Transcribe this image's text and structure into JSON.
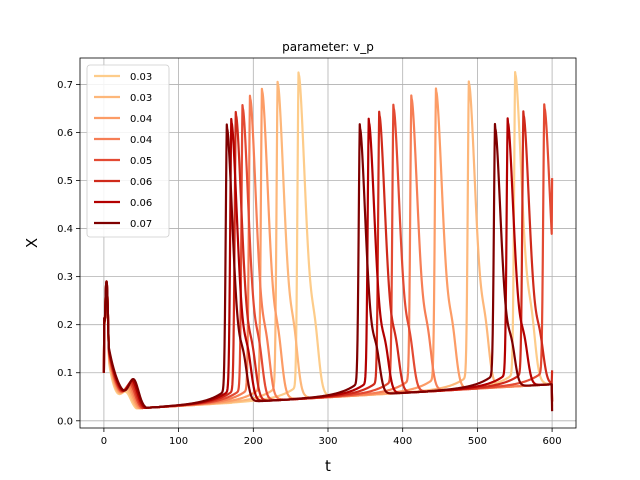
{
  "chart_data": {
    "type": "line",
    "title": "parameter: v_p",
    "xlabel": "t",
    "ylabel": "X",
    "xlim": [
      -32,
      632
    ],
    "ylim": [
      -0.015,
      0.755
    ],
    "xticks": [
      0,
      100,
      200,
      300,
      400,
      500,
      600
    ],
    "yticks": [
      0.0,
      0.1,
      0.2,
      0.3,
      0.4,
      0.5,
      0.6,
      0.7
    ],
    "xtick_labels": [
      "0",
      "100",
      "200",
      "300",
      "400",
      "500",
      "600"
    ],
    "ytick_labels": [
      "0.0",
      "0.1",
      "0.2",
      "0.3",
      "0.4",
      "0.5",
      "0.6",
      "0.7"
    ],
    "grid": true,
    "legend_position": "upper-left",
    "series": [
      {
        "name": "0.03",
        "color": "#fdcc8a",
        "peaks": [
          {
            "t": 261,
            "x": 0.72
          },
          {
            "t": 551,
            "x": 0.72
          }
        ],
        "end": 0.03
      },
      {
        "name": "0.03",
        "color": "#fdb77a",
        "peaks": [
          {
            "t": 233,
            "x": 0.7
          },
          {
            "t": 489,
            "x": 0.7
          }
        ],
        "end": 0.04
      },
      {
        "name": "0.04",
        "color": "#fc9c66",
        "peaks": [
          {
            "t": 212,
            "x": 0.685
          },
          {
            "t": 445,
            "x": 0.685
          }
        ],
        "end": 0.045
      },
      {
        "name": "0.04",
        "color": "#f67e55",
        "peaks": [
          {
            "t": 196,
            "x": 0.67
          },
          {
            "t": 412,
            "x": 0.67
          }
        ],
        "end": 0.04
      },
      {
        "name": "0.05",
        "color": "#e34a33",
        "peaks": [
          {
            "t": 186,
            "x": 0.65
          },
          {
            "t": 388,
            "x": 0.65
          },
          {
            "t": 590,
            "x": 0.65
          }
        ],
        "end": 0.505
      },
      {
        "name": "0.06",
        "color": "#cf2a1b",
        "peaks": [
          {
            "t": 177,
            "x": 0.635
          },
          {
            "t": 369,
            "x": 0.635
          },
          {
            "t": 562,
            "x": 0.635
          }
        ],
        "end": 0.105
      },
      {
        "name": "0.06",
        "color": "#b30000",
        "peaks": [
          {
            "t": 171,
            "x": 0.62
          },
          {
            "t": 355,
            "x": 0.62
          },
          {
            "t": 541,
            "x": 0.62
          }
        ],
        "end": 0.04
      },
      {
        "name": "0.07",
        "color": "#7f0000",
        "peaks": [
          {
            "t": 165,
            "x": 0.608
          },
          {
            "t": 343,
            "x": 0.608
          },
          {
            "t": 524,
            "x": 0.608
          }
        ],
        "end": 0.02
      }
    ]
  }
}
